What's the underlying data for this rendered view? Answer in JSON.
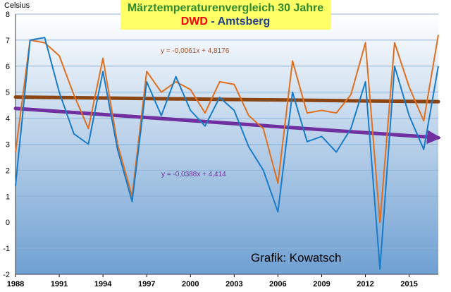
{
  "title": {
    "line1": "Märztemperaturenvergleich 30 Jahre",
    "dwd": "DWD",
    "separator": " - ",
    "amtsberg": "Amtsberg"
  },
  "y_unit": "Celsius",
  "credit": "Grafik: Kowatsch",
  "trend_equations": {
    "dwd": "y = -0,0061x + 4,8176",
    "amtsberg": "y = -0,0388x + 4,414"
  },
  "colors": {
    "dwd": "#e07020",
    "amtsberg": "#1a7cc8",
    "dwd_trend": "#8b4513",
    "amtsberg_trend": "#7030a0",
    "background_top": "#ffffff",
    "background_bottom": "#6fa0d2"
  },
  "chart_data": {
    "type": "line",
    "x": [
      1988,
      1989,
      1990,
      1991,
      1992,
      1993,
      1994,
      1995,
      1996,
      1997,
      1998,
      1999,
      2000,
      2001,
      2002,
      2003,
      2004,
      2005,
      2006,
      2007,
      2008,
      2009,
      2010,
      2011,
      2012,
      2013,
      2014,
      2015,
      2016,
      2017
    ],
    "x_tick_labels": [
      "1988",
      "1991",
      "1994",
      "1997",
      "2000",
      "2003",
      "2006",
      "2009",
      "2012",
      "2015"
    ],
    "y_tick_labels": [
      "-2",
      "-1",
      "0",
      "1",
      "2",
      "3",
      "4",
      "5",
      "6",
      "7",
      "8"
    ],
    "ylim": [
      -2,
      8
    ],
    "ylabel": "Celsius",
    "grid": true,
    "series": [
      {
        "key": "dwd",
        "values": [
          2.7,
          7.0,
          6.9,
          6.4,
          4.9,
          3.6,
          6.3,
          3.0,
          1.0,
          5.8,
          5.0,
          5.4,
          5.1,
          4.2,
          5.4,
          5.3,
          4.1,
          3.6,
          1.5,
          6.2,
          4.2,
          4.3,
          4.2,
          4.9,
          6.9,
          0.0,
          6.9,
          5.2,
          3.9,
          7.2
        ]
      },
      {
        "key": "amtsberg",
        "values": [
          1.4,
          7.0,
          7.1,
          5.0,
          3.4,
          3.0,
          5.8,
          2.8,
          0.8,
          5.4,
          4.1,
          5.6,
          4.3,
          3.7,
          4.8,
          4.3,
          2.9,
          2.0,
          0.4,
          5.0,
          3.1,
          3.3,
          2.7,
          3.6,
          5.4,
          -1.8,
          6.0,
          4.1,
          2.8,
          6.0
        ]
      }
    ],
    "trendlines": [
      {
        "key": "dwd_trend",
        "slope": -0.0061,
        "intercept": 4.8176
      },
      {
        "key": "amtsberg_trend",
        "slope": -0.0388,
        "intercept": 4.414
      }
    ]
  }
}
